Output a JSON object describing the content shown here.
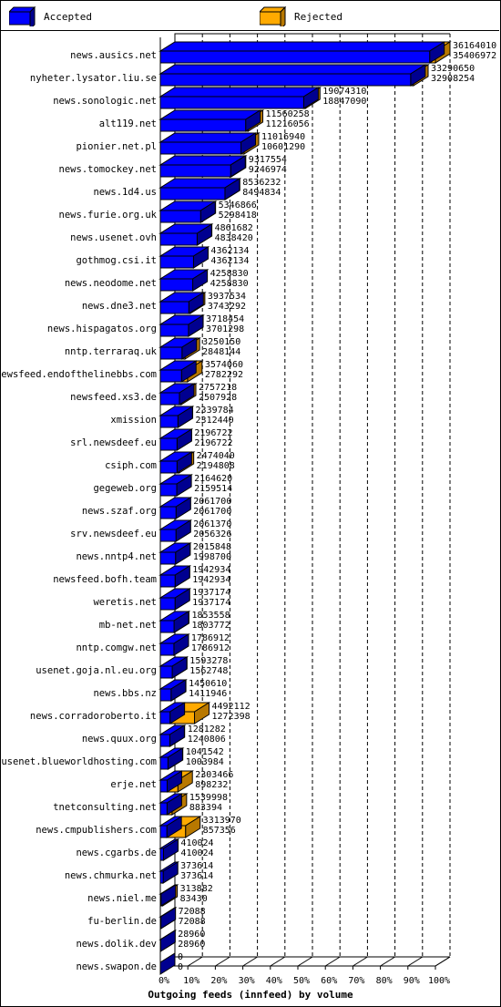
{
  "colors": {
    "accepted": "#0000ff",
    "accepted_dark": "#000090",
    "rejected": "#ffaa00",
    "rejected_dark": "#b87800",
    "grid": "#000000"
  },
  "legend": {
    "accepted_label": "Accepted",
    "rejected_label": "Rejected"
  },
  "chart_data": {
    "type": "bar",
    "orientation": "horizontal",
    "stacked": true,
    "title": "",
    "xlabel": "Outgoing feeds (innfeed) by volume",
    "x_ticks": [
      "0%",
      "10%",
      "20%",
      "30%",
      "40%",
      "50%",
      "60%",
      "70%",
      "80%",
      "90%",
      "100%"
    ],
    "xlim": [
      0,
      36164010
    ],
    "grid": "vertical dashed",
    "legend_position": "top",
    "series": [
      {
        "name": "Accepted",
        "role": "accepted"
      },
      {
        "name": "Rejected",
        "role": "rejected"
      }
    ],
    "rows": [
      {
        "label": "news.ausics.net",
        "total": 36164010,
        "accepted": 35406972,
        "total_text": "36164010",
        "accepted_text": "35406972"
      },
      {
        "label": "nyheter.lysator.liu.se",
        "total": 33290650,
        "accepted": 32908254,
        "total_text": "33290650",
        "accepted_text": "32908254"
      },
      {
        "label": "news.sonologic.net",
        "total": 19074310,
        "accepted": 18847090,
        "total_text": "19074310",
        "accepted_text": "18847090"
      },
      {
        "label": "alt119.net",
        "total": 11560258,
        "accepted": 11216056,
        "total_text": "11560258",
        "accepted_text": "11216056"
      },
      {
        "label": "pionier.net.pl",
        "total": 11016940,
        "accepted": 10601290,
        "total_text": "11016940",
        "accepted_text": "10601290"
      },
      {
        "label": "news.tomockey.net",
        "total": 9317554,
        "accepted": 9246974,
        "total_text": "9317554",
        "accepted_text": "9246974"
      },
      {
        "label": "news.1d4.us",
        "total": 8536232,
        "accepted": 8494834,
        "total_text": "8536232",
        "accepted_text": "8494834"
      },
      {
        "label": "news.furie.org.uk",
        "total": 5346866,
        "accepted": 5298418,
        "total_text": "5346866",
        "accepted_text": "5298418"
      },
      {
        "label": "news.usenet.ovh",
        "total": 4861682,
        "accepted": 4838420,
        "total_text": "4861682",
        "accepted_text": "4838420"
      },
      {
        "label": "gothmog.csi.it",
        "total": 4362134,
        "accepted": 4362134,
        "total_text": "4362134",
        "accepted_text": "4362134"
      },
      {
        "label": "news.neodome.net",
        "total": 4258830,
        "accepted": 4258830,
        "total_text": "4258830",
        "accepted_text": "4258830"
      },
      {
        "label": "news.dne3.net",
        "total": 3937534,
        "accepted": 3743292,
        "total_text": "3937534",
        "accepted_text": "3743292"
      },
      {
        "label": "news.hispagatos.org",
        "total": 3718454,
        "accepted": 3701298,
        "total_text": "3718454",
        "accepted_text": "3701298"
      },
      {
        "label": "nntp.terraraq.uk",
        "total": 3250150,
        "accepted": 2848144,
        "total_text": "3250150",
        "accepted_text": "2848144"
      },
      {
        "label": "newsfeed.endofthelinebbs.com",
        "total": 3574060,
        "accepted": 2782292,
        "total_text": "3574060",
        "accepted_text": "2782292"
      },
      {
        "label": "newsfeed.xs3.de",
        "total": 2757218,
        "accepted": 2507928,
        "total_text": "2757218",
        "accepted_text": "2507928"
      },
      {
        "label": "xmission",
        "total": 2339784,
        "accepted": 2312440,
        "total_text": "2339784",
        "accepted_text": "2312440"
      },
      {
        "label": "srl.newsdeef.eu",
        "total": 2196722,
        "accepted": 2196722,
        "total_text": "2196722",
        "accepted_text": "2196722"
      },
      {
        "label": "csiph.com",
        "total": 2474040,
        "accepted": 2194808,
        "total_text": "2474040",
        "accepted_text": "2194808"
      },
      {
        "label": "gegeweb.org",
        "total": 2164620,
        "accepted": 2159514,
        "total_text": "2164620",
        "accepted_text": "2159514"
      },
      {
        "label": "news.szaf.org",
        "total": 2061700,
        "accepted": 2061700,
        "total_text": "2061700",
        "accepted_text": "2061700"
      },
      {
        "label": "srv.newsdeef.eu",
        "total": 2061370,
        "accepted": 2056326,
        "total_text": "2061370",
        "accepted_text": "2056326"
      },
      {
        "label": "news.nntp4.net",
        "total": 2015848,
        "accepted": 1998700,
        "total_text": "2015848",
        "accepted_text": "1998700"
      },
      {
        "label": "newsfeed.bofh.team",
        "total": 1942934,
        "accepted": 1942934,
        "total_text": "1942934",
        "accepted_text": "1942934"
      },
      {
        "label": "weretis.net",
        "total": 1937174,
        "accepted": 1937174,
        "total_text": "1937174",
        "accepted_text": "1937174"
      },
      {
        "label": "mb-net.net",
        "total": 1853558,
        "accepted": 1803772,
        "total_text": "1853558",
        "accepted_text": "1803772"
      },
      {
        "label": "nntp.comgw.net",
        "total": 1786912,
        "accepted": 1786912,
        "total_text": "1786912",
        "accepted_text": "1786912"
      },
      {
        "label": "usenet.goja.nl.eu.org",
        "total": 1593278,
        "accepted": 1562748,
        "total_text": "1593278",
        "accepted_text": "1562748"
      },
      {
        "label": "news.bbs.nz",
        "total": 1450610,
        "accepted": 1411946,
        "total_text": "1450610",
        "accepted_text": "1411946"
      },
      {
        "label": "news.corradoroberto.it",
        "total": 4492112,
        "accepted": 1272398,
        "total_text": "4492112",
        "accepted_text": "1272398"
      },
      {
        "label": "news.quux.org",
        "total": 1281282,
        "accepted": 1240806,
        "total_text": "1281282",
        "accepted_text": "1240806"
      },
      {
        "label": "usenet.blueworldhosting.com",
        "total": 1041542,
        "accepted": 1003984,
        "total_text": "1041542",
        "accepted_text": "1003984"
      },
      {
        "label": "erje.net",
        "total": 2303466,
        "accepted": 898232,
        "total_text": "2303466",
        "accepted_text": "898232"
      },
      {
        "label": "tnetconsulting.net",
        "total": 1539998,
        "accepted": 883394,
        "total_text": "1539998",
        "accepted_text": "883394"
      },
      {
        "label": "news.cmpublishers.com",
        "total": 3313970,
        "accepted": 857356,
        "total_text": "3313970",
        "accepted_text": "857356"
      },
      {
        "label": "news.cgarbs.de",
        "total": 410024,
        "accepted": 410024,
        "total_text": "410024",
        "accepted_text": "410024"
      },
      {
        "label": "news.chmurka.net",
        "total": 373614,
        "accepted": 373614,
        "total_text": "373614",
        "accepted_text": "373614"
      },
      {
        "label": "news.niel.me",
        "total": 313882,
        "accepted": 83430,
        "total_text": "313882",
        "accepted_text": "83430"
      },
      {
        "label": "fu-berlin.de",
        "total": 72088,
        "accepted": 72088,
        "total_text": "72088",
        "accepted_text": "72088"
      },
      {
        "label": "news.dolik.dev",
        "total": 28960,
        "accepted": 28960,
        "total_text": "28960",
        "accepted_text": "28960"
      },
      {
        "label": "news.swapon.de",
        "total": 0,
        "accepted": 0,
        "total_text": "0",
        "accepted_text": "0"
      }
    ]
  }
}
